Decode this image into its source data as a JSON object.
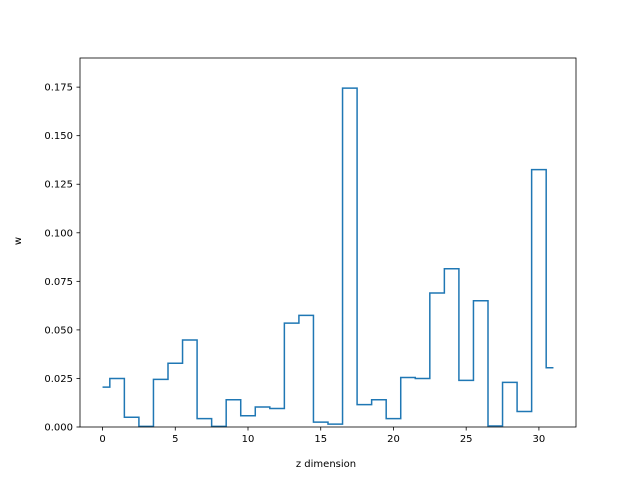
{
  "chart_data": {
    "type": "line",
    "step": "mid",
    "xlabel": "z dimension",
    "ylabel": "w",
    "xlim": [
      -1.55,
      32.55
    ],
    "ylim": [
      0,
      0.19
    ],
    "x_ticks": [
      0,
      5,
      10,
      15,
      20,
      25,
      30
    ],
    "x_tick_labels": [
      "0",
      "5",
      "10",
      "15",
      "20",
      "25",
      "30"
    ],
    "y_ticks": [
      0,
      0.025,
      0.05,
      0.075,
      0.1,
      0.125,
      0.15,
      0.175
    ],
    "y_tick_labels": [
      "0.000",
      "0.025",
      "0.050",
      "0.075",
      "0.100",
      "0.125",
      "0.150",
      "0.175"
    ],
    "grid": false,
    "series": [
      {
        "color": "#1f77b4",
        "x": [
          0,
          1,
          2,
          3,
          4,
          5,
          6,
          7,
          8,
          9,
          10,
          11,
          12,
          13,
          14,
          15,
          16,
          17,
          18,
          19,
          20,
          21,
          22,
          23,
          24,
          25,
          26,
          27,
          28,
          29,
          30,
          31
        ],
        "y": [
          0.0205,
          0.025,
          0.005,
          0.0003,
          0.0245,
          0.0328,
          0.0448,
          0.0043,
          0.0003,
          0.014,
          0.0058,
          0.0103,
          0.0095,
          0.0535,
          0.0575,
          0.0025,
          0.0015,
          0.1745,
          0.0115,
          0.014,
          0.0043,
          0.0255,
          0.025,
          0.069,
          0.0815,
          0.024,
          0.065,
          0.0005,
          0.023,
          0.008,
          0.1325,
          0.0305
        ]
      }
    ]
  }
}
